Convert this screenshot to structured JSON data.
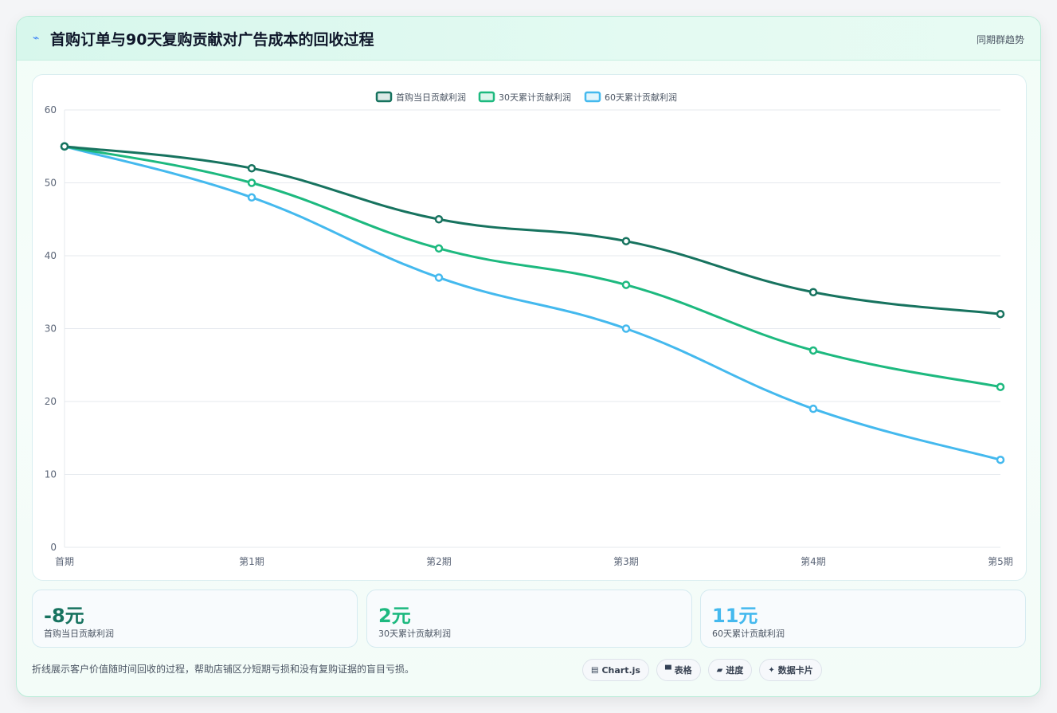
{
  "header": {
    "icon": "lightning-icon",
    "title": "首购订单与90天复购贡献对广告成本的回收过程",
    "right_label": "同期群趋势"
  },
  "chart_data": {
    "type": "line",
    "title": "",
    "xlabel": "",
    "ylabel": "",
    "categories": [
      "首期",
      "第1期",
      "第2期",
      "第3期",
      "第4期",
      "第5期"
    ],
    "ylim": [
      0,
      60
    ],
    "yticks": [
      0,
      10,
      20,
      30,
      40,
      50,
      60
    ],
    "grid": true,
    "legend_position": "top-center",
    "series": [
      {
        "name": "首购当日贡献利润",
        "color": "#17735f",
        "values": [
          55,
          52,
          45,
          42,
          35,
          32
        ]
      },
      {
        "name": "30天累计贡献利润",
        "color": "#1db97f",
        "values": [
          55,
          50,
          41,
          36,
          27,
          22
        ]
      },
      {
        "name": "60天累计贡献利润",
        "color": "#44b9ee",
        "values": [
          55,
          48,
          37,
          30,
          19,
          12
        ]
      }
    ]
  },
  "stats": [
    {
      "value": "-8元",
      "label": "首购当日贡献利润",
      "color": "#17735f"
    },
    {
      "value": "2元",
      "label": "30天累计贡献利润",
      "color": "#1db97f"
    },
    {
      "value": "11元",
      "label": "60天累计贡献利润",
      "color": "#44b9ee"
    }
  ],
  "footnote": "折线展示客户价值随时间回收的过程，帮助店铺区分短期亏损和没有复购证据的盲目亏损。",
  "chips": [
    {
      "icon": "chart-icon",
      "glyph": "▤",
      "label": "Chart.js"
    },
    {
      "icon": "table-icon",
      "glyph": "▀",
      "label": "表格"
    },
    {
      "icon": "progress-icon",
      "glyph": "▰",
      "label": "进度"
    },
    {
      "icon": "sparkle-icon",
      "glyph": "✦",
      "label": "数据卡片"
    }
  ]
}
